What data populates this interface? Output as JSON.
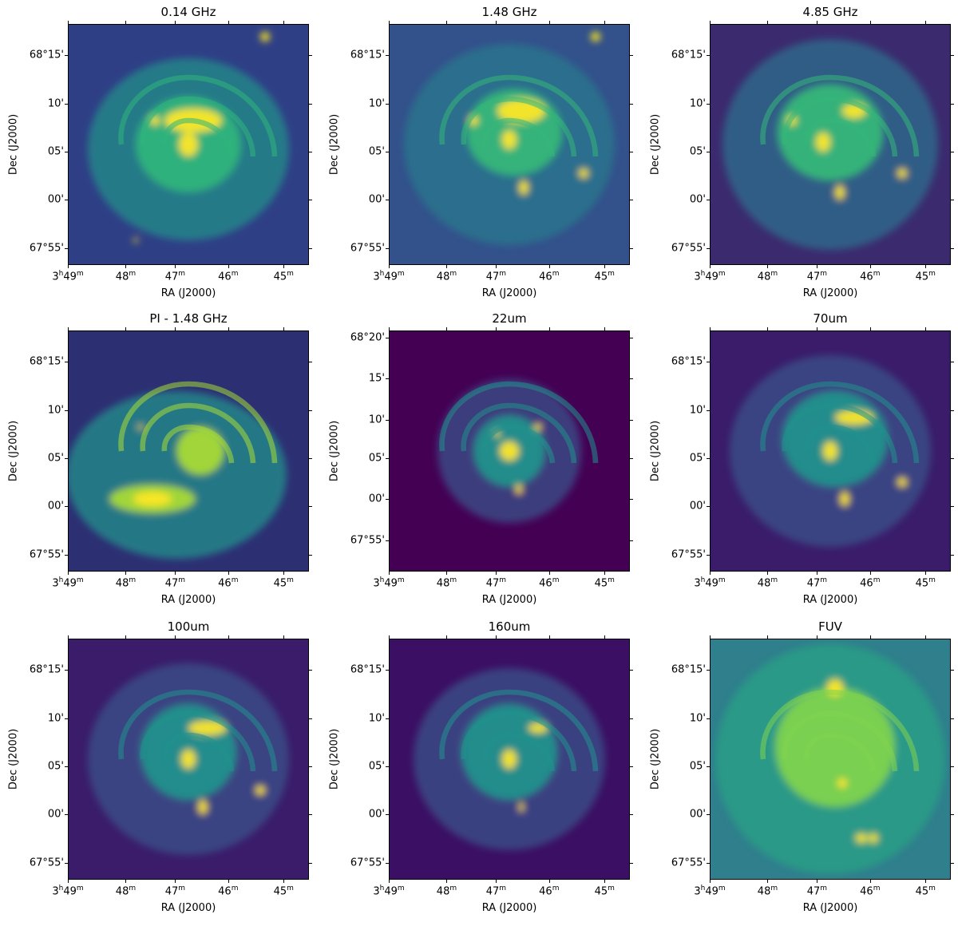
{
  "panels": [
    {
      "title": "0.14 GHz",
      "xlabel": "RA (J2000)",
      "ylabel": "Dec (J2000)",
      "yticks": [
        "68°15'",
        "10'",
        "05'",
        "00'",
        "67°55'"
      ],
      "xticks_first": {
        "hours": "3",
        "minutes": "49",
        "h": "h",
        "m": "m"
      },
      "xticks": [
        "48",
        "47",
        "46",
        "45"
      ],
      "m": "m",
      "palette": {
        "bg": "#2f3f86",
        "mid": "#228f8a",
        "hi": "#2fb47c",
        "peak": "#fde725"
      }
    },
    {
      "title": "1.48 GHz",
      "xlabel": "RA (J2000)",
      "ylabel": "Dec (J2000)",
      "yticks": [
        "68°15'",
        "10'",
        "05'",
        "00'",
        "67°55'"
      ],
      "xticks_first": {
        "hours": "3",
        "minutes": "49",
        "h": "h",
        "m": "m"
      },
      "xticks": [
        "48",
        "47",
        "46",
        "45"
      ],
      "m": "m",
      "palette": {
        "bg": "#33518b",
        "mid": "#2a788e",
        "hi": "#35b779",
        "peak": "#fde725"
      }
    },
    {
      "title": "4.85 GHz",
      "xlabel": "RA (J2000)",
      "ylabel": "Dec (J2000)",
      "yticks": [
        "68°15'",
        "10'",
        "05'",
        "00'",
        "67°55'"
      ],
      "xticks_first": {
        "hours": "3",
        "minutes": "49",
        "h": "h",
        "m": "m"
      },
      "xticks": [
        "48",
        "47",
        "46",
        "45"
      ],
      "m": "m",
      "palette": {
        "bg": "#3b2a6e",
        "mid": "#2c6f8e",
        "hi": "#35b779",
        "peak": "#fde725"
      }
    },
    {
      "title": "PI - 1.48 GHz",
      "xlabel": "RA (J2000)",
      "ylabel": "Dec (J2000)",
      "yticks": [
        "68°15'",
        "10'",
        "05'",
        "00'",
        "67°55'"
      ],
      "xticks_first": {
        "hours": "3",
        "minutes": "49",
        "h": "h",
        "m": "m"
      },
      "xticks": [
        "48",
        "47",
        "46",
        "45"
      ],
      "m": "m",
      "palette": {
        "bg": "#2d2f73",
        "mid": "#21918c",
        "hi": "#a8db34",
        "peak": "#fde725"
      }
    },
    {
      "title": "22um",
      "xlabel": "RA (J2000)",
      "ylabel": "Dec (J2000)",
      "yticks": [
        "68°20'",
        "15'",
        "10'",
        "05'",
        "00'",
        "67°55'"
      ],
      "xticks_first": {
        "hours": "3",
        "minutes": "49",
        "h": "h",
        "m": "m"
      },
      "xticks": [
        "48",
        "47",
        "46",
        "45"
      ],
      "m": "m",
      "palette": {
        "bg": "#440154",
        "mid": "#3b528b",
        "hi": "#21918c",
        "peak": "#fde725"
      }
    },
    {
      "title": "70um",
      "xlabel": "RA (J2000)",
      "ylabel": "Dec (J2000)",
      "yticks": [
        "68°15'",
        "10'",
        "05'",
        "00'",
        "67°55'"
      ],
      "xticks_first": {
        "hours": "3",
        "minutes": "49",
        "h": "h",
        "m": "m"
      },
      "xticks": [
        "48",
        "47",
        "46",
        "45"
      ],
      "m": "m",
      "palette": {
        "bg": "#3a1c6a",
        "mid": "#3b528b",
        "hi": "#21918c",
        "peak": "#fde725"
      }
    },
    {
      "title": "100um",
      "xlabel": "RA (J2000)",
      "ylabel": "Dec (J2000)",
      "yticks": [
        "68°15'",
        "10'",
        "05'",
        "00'",
        "67°55'"
      ],
      "xticks_first": {
        "hours": "3",
        "minutes": "49",
        "h": "h",
        "m": "m"
      },
      "xticks": [
        "48",
        "47",
        "46",
        "45"
      ],
      "m": "m",
      "palette": {
        "bg": "#3a1c6a",
        "mid": "#3b528b",
        "hi": "#21918c",
        "peak": "#fde725"
      }
    },
    {
      "title": "160um",
      "xlabel": "RA (J2000)",
      "ylabel": "Dec (J2000)",
      "yticks": [
        "68°15'",
        "10'",
        "05'",
        "00'",
        "67°55'"
      ],
      "xticks_first": {
        "hours": "3",
        "minutes": "49",
        "h": "h",
        "m": "m"
      },
      "xticks": [
        "48",
        "47",
        "46",
        "45"
      ],
      "m": "m",
      "palette": {
        "bg": "#3b0f63",
        "mid": "#3b528b",
        "hi": "#21918c",
        "peak": "#fde725"
      }
    },
    {
      "title": "FUV",
      "xlabel": "RA (J2000)",
      "ylabel": "Dec (J2000)",
      "yticks": [
        "68°15'",
        "10'",
        "05'",
        "00'",
        "67°55'"
      ],
      "xticks_first": {
        "hours": "3",
        "minutes": "49",
        "h": "h",
        "m": "m"
      },
      "xticks": [
        "48",
        "47",
        "46",
        "45"
      ],
      "m": "m",
      "palette": {
        "bg": "#2f7f8c",
        "mid": "#2aa186",
        "hi": "#7fd34e",
        "peak": "#fde725"
      }
    }
  ]
}
